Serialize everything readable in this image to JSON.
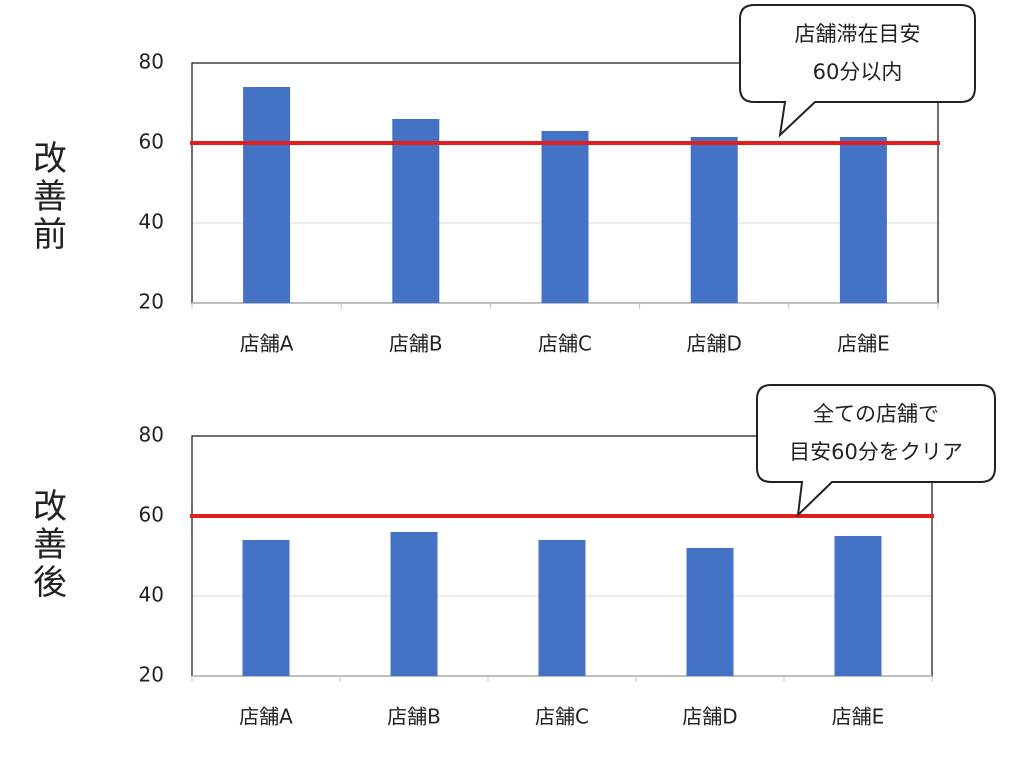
{
  "chart_data": [
    {
      "type": "bar",
      "title": "改善前",
      "categories": [
        "店舗A",
        "店舗B",
        "店舗C",
        "店舗D",
        "店舗E"
      ],
      "values": [
        74,
        66,
        63,
        61.5,
        61.5
      ],
      "color": "#4472c4",
      "ylim": [
        20,
        80
      ],
      "yticks": [
        20,
        40,
        60,
        80
      ],
      "grid": true,
      "reference_line": {
        "value": 60,
        "color": "#e02020"
      },
      "annotation": [
        "店舗滞在目安",
        "60分以内"
      ]
    },
    {
      "type": "bar",
      "title": "改善後",
      "categories": [
        "店舗A",
        "店舗B",
        "店舗C",
        "店舗D",
        "店舗E"
      ],
      "values": [
        54,
        56,
        54,
        52,
        55
      ],
      "color": "#4472c4",
      "ylim": [
        20,
        80
      ],
      "yticks": [
        20,
        40,
        60,
        80
      ],
      "grid": true,
      "reference_line": {
        "value": 60,
        "color": "#e02020"
      },
      "annotation": [
        "全ての店舗で",
        "目安60分をクリア"
      ]
    }
  ]
}
